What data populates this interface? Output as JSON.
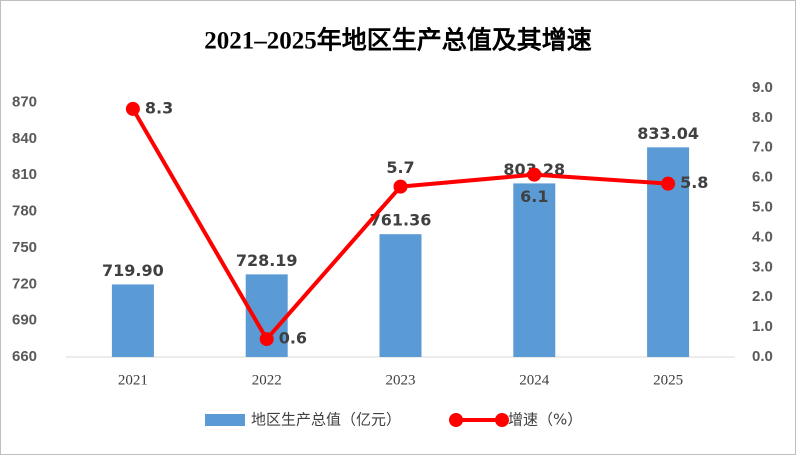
{
  "chart_data": {
    "type": "combo",
    "title": "2021–2025年地区生产总值及其增速",
    "categories": [
      "2021",
      "2022",
      "2023",
      "2024",
      "2025"
    ],
    "series": [
      {
        "name": "地区生产总值（亿元）",
        "type": "bar",
        "color": "#5b9bd5",
        "values": [
          719.9,
          728.19,
          761.36,
          803.28,
          833.04
        ],
        "value_labels": [
          "719.90",
          "728.19",
          "761.36",
          "803.28",
          "833.04"
        ]
      },
      {
        "name": "增速（%）",
        "type": "line",
        "axis": "y2",
        "color": "#ff0000",
        "values": [
          8.3,
          0.6,
          5.7,
          6.1,
          5.8
        ]
      }
    ],
    "ylim": [
      660,
      882
    ],
    "yticks": [
      660,
      690,
      720,
      750,
      780,
      810,
      840,
      870
    ],
    "y2lim": [
      0,
      9
    ],
    "y2ticks": [
      {
        "value": 0,
        "label": "0.0"
      },
      {
        "value": 1,
        "label": "1.0"
      },
      {
        "value": 2,
        "label": "2.0"
      },
      {
        "value": 3,
        "label": "3.0"
      },
      {
        "value": 4,
        "label": "4.0"
      },
      {
        "value": 5,
        "label": "5.0"
      },
      {
        "value": 6,
        "label": "6.0"
      },
      {
        "value": 7,
        "label": "7.0"
      },
      {
        "value": 8,
        "label": "8.0"
      },
      {
        "value": 9,
        "label": "9.0"
      }
    ],
    "grid": false,
    "legend": "bottom"
  }
}
